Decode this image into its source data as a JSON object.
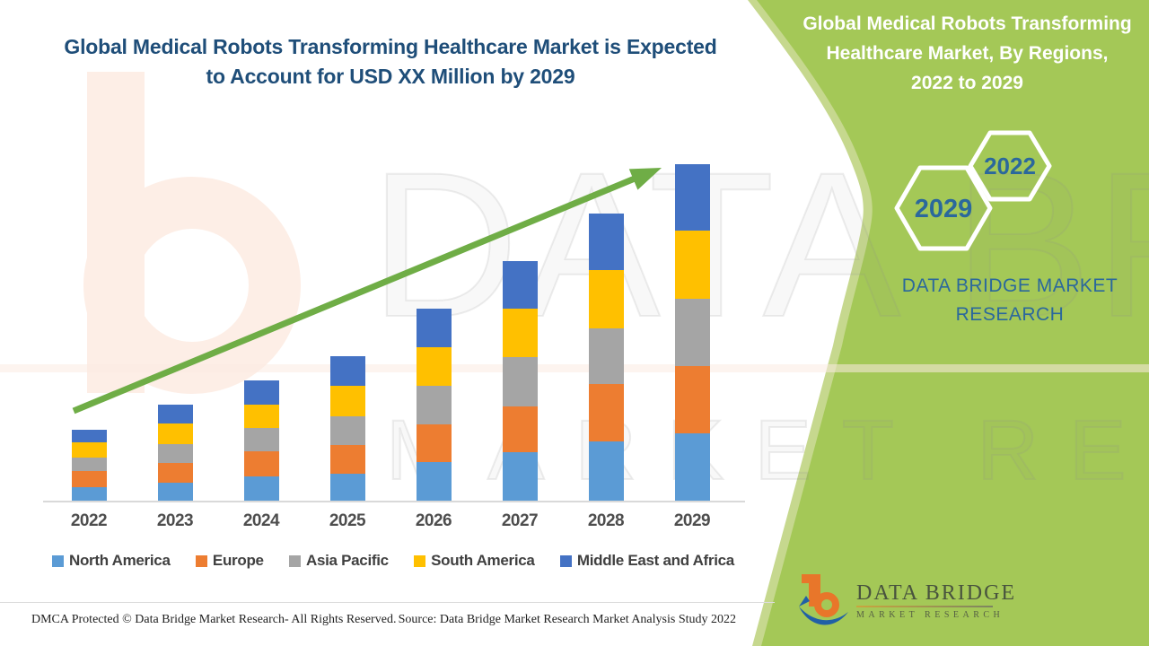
{
  "header": {
    "title_line1": "Global Medical Robots Transforming Healthcare Market is Expected",
    "title_line2": "to Account for USD XX Million by 2029"
  },
  "chart_data": {
    "type": "bar",
    "stacked": true,
    "title": "Global Medical Robots Transforming Healthcare Market is Expected to Account for USD XX Million by 2029",
    "xlabel": "",
    "ylabel": "",
    "units": "USD Million (values shown as XX, axis unlabeled)",
    "grid": false,
    "y_axis_visible": false,
    "legend_position": "bottom",
    "categories": [
      "2022",
      "2023",
      "2024",
      "2025",
      "2026",
      "2027",
      "2028",
      "2029"
    ],
    "series": [
      {
        "name": "North America",
        "color": "#5B9BD5",
        "values": [
          15,
          20,
          27,
          30,
          43,
          54,
          66,
          75
        ]
      },
      {
        "name": "Europe",
        "color": "#ED7D31",
        "values": [
          18,
          22,
          28,
          32,
          42,
          51,
          64,
          75
        ]
      },
      {
        "name": "Asia Pacific",
        "color": "#A5A5A5",
        "values": [
          15,
          21,
          26,
          32,
          43,
          55,
          62,
          75
        ]
      },
      {
        "name": "South America",
        "color": "#FFC000",
        "values": [
          17,
          23,
          26,
          34,
          43,
          54,
          65,
          76
        ]
      },
      {
        "name": "Middle East and Africa",
        "color": "#4472C4",
        "values": [
          14,
          21,
          27,
          33,
          43,
          53,
          63,
          74
        ]
      }
    ],
    "totals_relative_units": [
      79,
      107,
      134,
      161,
      214,
      267,
      320,
      375
    ],
    "trend_arrow": true,
    "trend_arrow_color": "#6fad46"
  },
  "sidebar": {
    "title_line1": "Global Medical Robots Transforming",
    "title_line2": "Healthcare Market, By Regions,",
    "title_line3": "2022 to 2029",
    "hexagon_labels": [
      "2022",
      "2029"
    ],
    "brand_line1": "DATA BRIDGE MARKET",
    "brand_line2": "RESEARCH",
    "panel_color": "#a4c857",
    "panel_edge_color": "#c6d88e",
    "accent_text_color": "#2b689c"
  },
  "footer": {
    "left": "DMCA Protected © Data Bridge Market Research- All Rights Reserved.",
    "right": "Source: Data Bridge Market Research Market Analysis Study 2022"
  },
  "logo": {
    "name": "DATA BRIDGE",
    "tagline": "MARKET RESEARCH",
    "orange": "#e8762a",
    "blue": "#2160a6"
  },
  "watermark": {
    "row1": "DATA BRIDGE",
    "row2": "MARKET RESEARCH"
  },
  "colors": {
    "heading_blue": "#1f4e79",
    "axis_line": "#d9d9d9",
    "x_label": "#4d4d4d",
    "legend_text": "#404040"
  }
}
